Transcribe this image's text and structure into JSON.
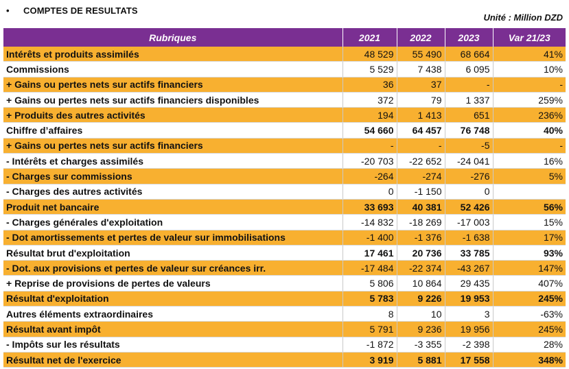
{
  "section": {
    "bullet": "•",
    "title": "COMPTES DE RESULTATS",
    "unit": "Unité : Million DZD"
  },
  "colors": {
    "header_bg": "#7a2f92",
    "highlight": "#f8b030"
  },
  "table": {
    "headers": [
      "Rubriques",
      "2021",
      "2022",
      "2023",
      "Var 21/23"
    ],
    "rows": [
      {
        "label": "Intérêts et produits assimilés",
        "v2021": "48 529",
        "v2022": "55 490",
        "v2023": "68 664",
        "var": "41%",
        "style": "orange",
        "bold": false
      },
      {
        "label": "Commissions",
        "v2021": "5 529",
        "v2022": "7 438",
        "v2023": "6 095",
        "var": "10%",
        "style": "white",
        "bold": false
      },
      {
        "label": "+ Gains ou pertes nets sur actifs financiers",
        "v2021": "36",
        "v2022": "37",
        "v2023": "-",
        "var": "-",
        "style": "orange",
        "bold": false
      },
      {
        "label": "+ Gains ou pertes nets sur actifs financiers disponibles",
        "v2021": "372",
        "v2022": "79",
        "v2023": "1 337",
        "var": "259%",
        "style": "white",
        "bold": false
      },
      {
        "label": "+ Produits des autres activités",
        "v2021": "194",
        "v2022": "1 413",
        "v2023": "651",
        "var": "236%",
        "style": "orange",
        "bold": false
      },
      {
        "label": "Chiffre d’affaires",
        "v2021": "54 660",
        "v2022": "64 457",
        "v2023": "76 748",
        "var": "40%",
        "style": "white",
        "bold": true
      },
      {
        "label": "+ Gains ou pertes nets sur actifs financiers",
        "v2021": "-",
        "v2022": "-",
        "v2023": "-5",
        "var": "-",
        "style": "orange",
        "bold": false
      },
      {
        "label": "- Intérêts et charges assimilés",
        "v2021": "-20 703",
        "v2022": "-22 652",
        "v2023": "-24 041",
        "var": "16%",
        "style": "white",
        "bold": false
      },
      {
        "label": "- Charges sur commissions",
        "v2021": "-264",
        "v2022": "-274",
        "v2023": "-276",
        "var": "5%",
        "style": "orange",
        "bold": false
      },
      {
        "label": "- Charges des autres activités",
        "v2021": "0",
        "v2022": "-1 150",
        "v2023": "0",
        "var": "",
        "style": "white",
        "bold": false
      },
      {
        "label": "Produit net bancaire",
        "v2021": "33 693",
        "v2022": "40 381",
        "v2023": "52 426",
        "var": "56%",
        "style": "orange",
        "bold": true
      },
      {
        "label": "- Charges générales d'exploitation",
        "v2021": "-14 832",
        "v2022": "-18 269",
        "v2023": "-17 003",
        "var": "15%",
        "style": "white",
        "bold": false
      },
      {
        "label": "- Dot amortissements et pertes de valeur sur immobilisations",
        "v2021": "-1 400",
        "v2022": "-1 376",
        "v2023": "-1 638",
        "var": "17%",
        "style": "orange",
        "bold": false
      },
      {
        "label": "Résultat brut d'exploitation",
        "v2021": "17 461",
        "v2022": "20 736",
        "v2023": "33 785",
        "var": "93%",
        "style": "white",
        "bold": true
      },
      {
        "label": "- Dot. aux provisions et pertes de valeur sur créances irr.",
        "v2021": "-17 484",
        "v2022": "-22 374",
        "v2023": "-43 267",
        "var": "147%",
        "style": "orange",
        "bold": false
      },
      {
        "label": "+ Reprise de provisions de pertes de valeurs",
        "v2021": "5 806",
        "v2022": "10 864",
        "v2023": "29 435",
        "var": "407%",
        "style": "white",
        "bold": false
      },
      {
        "label": "Résultat d'exploitation",
        "v2021": "5 783",
        "v2022": "9 226",
        "v2023": "19 953",
        "var": "245%",
        "style": "orange",
        "bold": true
      },
      {
        "label": "Autres éléments extraordinaires",
        "v2021": "8",
        "v2022": "10",
        "v2023": "3",
        "var": "-63%",
        "style": "white",
        "bold": false
      },
      {
        "label": "Résultat avant impôt",
        "v2021": "5 791",
        "v2022": "9 236",
        "v2023": "19 956",
        "var": "245%",
        "style": "orange",
        "bold": false
      },
      {
        "label": "- Impôts sur les résultats",
        "v2021": "-1 872",
        "v2022": "-3 355",
        "v2023": "-2 398",
        "var": "28%",
        "style": "white",
        "bold": false
      },
      {
        "label": "Résultat net de l'exercice",
        "v2021": "3 919",
        "v2022": "5 881",
        "v2023": "17 558",
        "var": "348%",
        "style": "orange",
        "bold": true
      }
    ]
  }
}
